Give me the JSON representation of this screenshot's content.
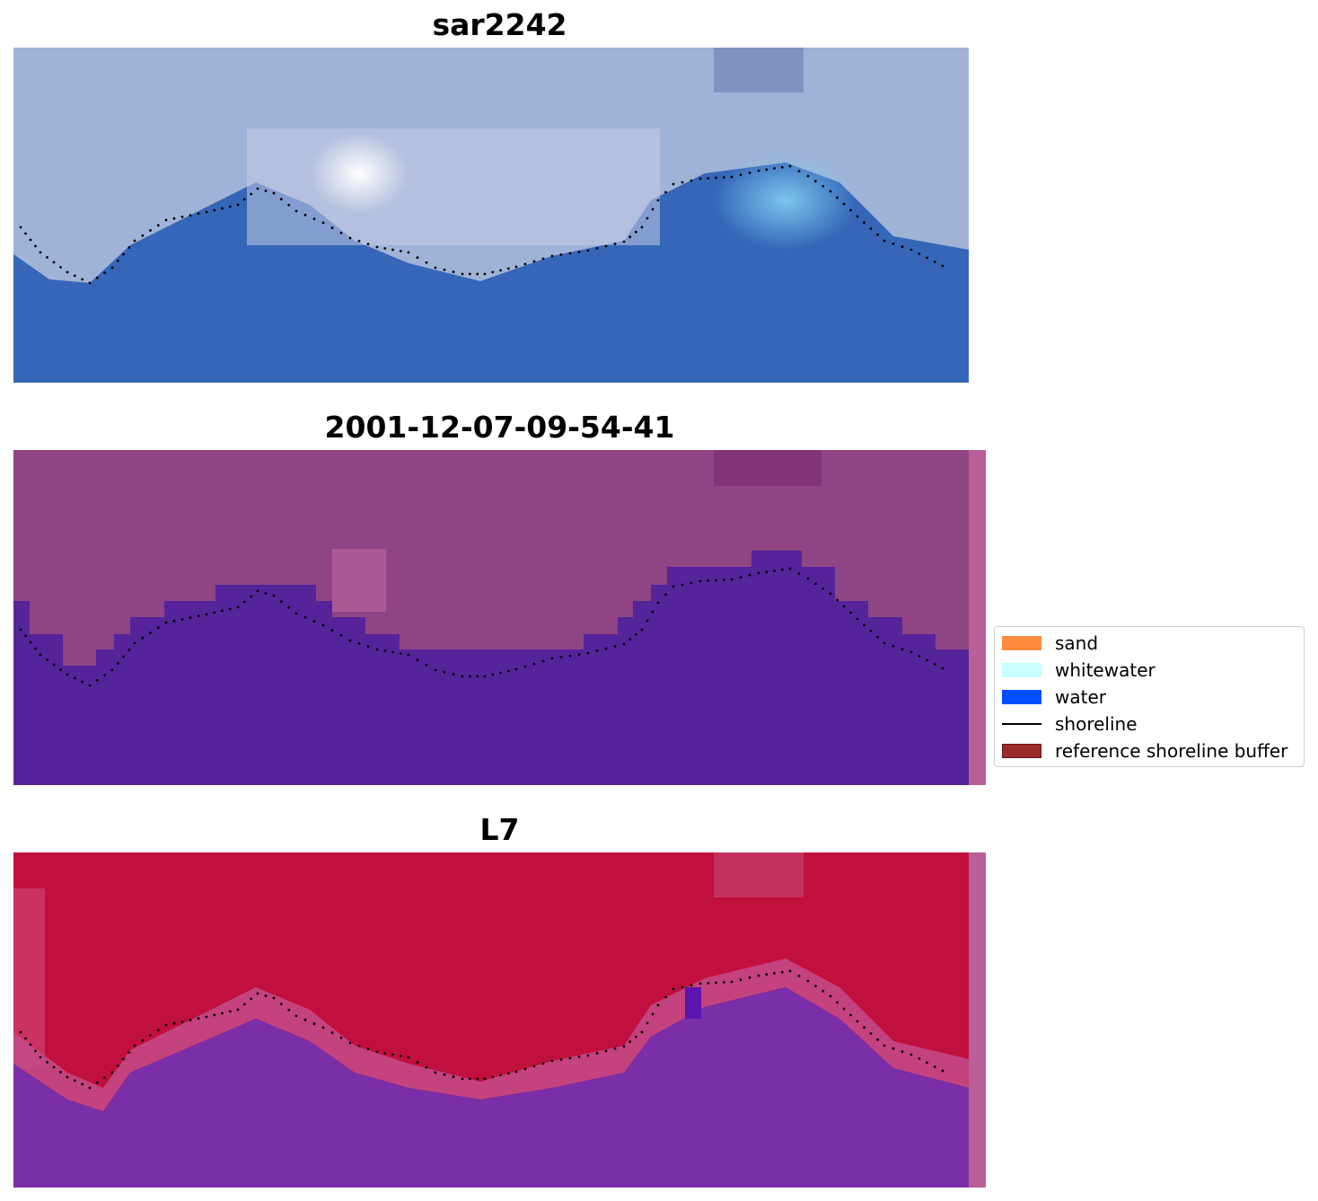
{
  "panels": [
    {
      "title": "sar2242",
      "kind": "rgb"
    },
    {
      "title": "2001-12-07-09-54-41",
      "kind": "classified"
    },
    {
      "title": "L7",
      "kind": "index"
    }
  ],
  "legend": {
    "items": [
      {
        "label": "sand",
        "color": "#ff8c3c",
        "type": "patch"
      },
      {
        "label": "whitewater",
        "color": "#c8ffff",
        "type": "patch"
      },
      {
        "label": "water",
        "color": "#0050ff",
        "type": "patch"
      },
      {
        "label": "shoreline",
        "color": "#000000",
        "type": "line"
      },
      {
        "label": "reference shoreline buffer",
        "color": "#9b2a2a",
        "type": "patch"
      }
    ]
  },
  "colors": {
    "rgb_sky": "#9fb3d6",
    "rgb_water": "#3566b8",
    "class_land": "#8f4484",
    "class_water": "#55249b",
    "index_land": "#c10f3e",
    "index_water": "#7a2ea8",
    "buffer_strip": "#b95e96"
  }
}
